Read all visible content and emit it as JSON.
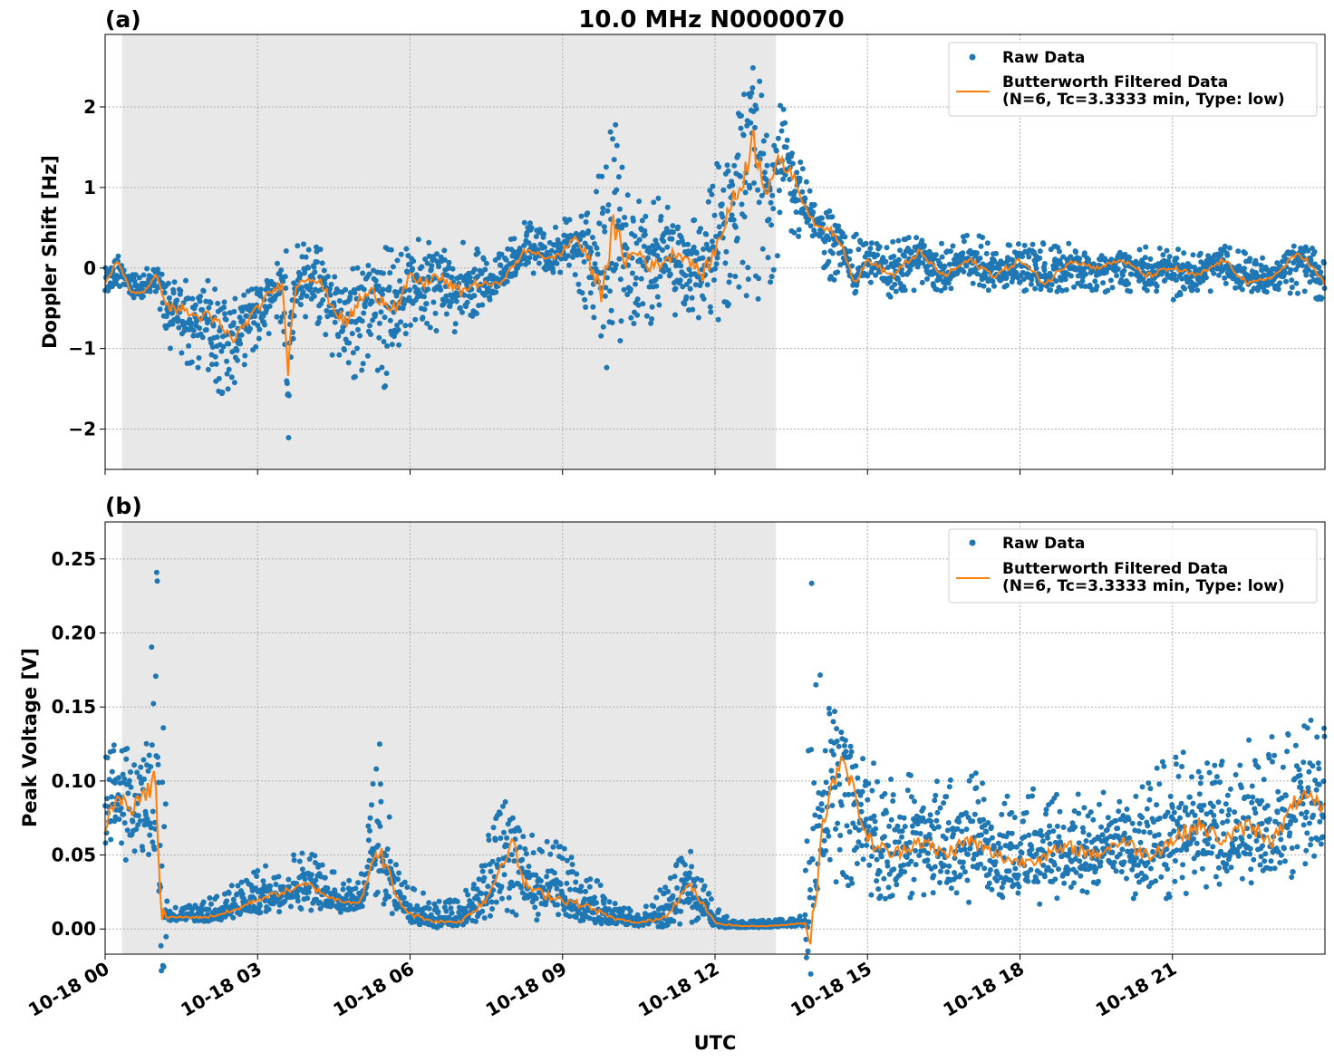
{
  "figure": {
    "title": "10.0 MHz N0000070",
    "xlabel": "UTC",
    "xticks": [
      "10-18 00",
      "10-18 03",
      "10-18 06",
      "10-18 09",
      "10-18 12",
      "10-18 15",
      "10-18 18",
      "10-18 21"
    ],
    "colors": {
      "raw": "#1f77b4",
      "filtered": "#ff7f0e",
      "shade": "#e8e8e8",
      "grid": "#b0b0b0"
    }
  },
  "chart_data": [
    {
      "type": "line",
      "panel_label": "(a)",
      "title": "10.0 MHz N0000070",
      "xlabel": "",
      "ylabel": "Doppler Shift [Hz]",
      "x_unit": "hours UTC on 10-18",
      "xlim": [
        0,
        24
      ],
      "ylim": [
        -2.5,
        2.9
      ],
      "yticks": [
        -2,
        -1,
        0,
        1,
        2
      ],
      "ytick_labels": [
        "−2",
        "−1",
        "0",
        "1",
        "2"
      ],
      "shaded_region": [
        0.33,
        13.2
      ],
      "grid": true,
      "legend_position": "top-right",
      "series": [
        {
          "name": "Raw Data",
          "style": "scatter",
          "x": [
            0.0,
            0.25,
            0.5,
            0.75,
            1.0,
            1.25,
            1.5,
            1.75,
            2.0,
            2.25,
            2.5,
            2.75,
            3.0,
            3.25,
            3.5,
            3.6,
            3.75,
            4.0,
            4.25,
            4.5,
            4.75,
            5.0,
            5.25,
            5.5,
            5.75,
            6.0,
            6.25,
            6.5,
            6.75,
            7.0,
            7.25,
            7.5,
            7.75,
            8.0,
            8.25,
            8.5,
            8.75,
            9.0,
            9.25,
            9.5,
            9.75,
            10.0,
            10.25,
            10.5,
            10.75,
            11.0,
            11.25,
            11.5,
            11.75,
            12.0,
            12.25,
            12.5,
            12.75,
            13.0,
            13.25,
            13.5,
            13.75,
            14.0,
            14.25,
            14.5,
            14.75,
            15.0,
            15.5,
            16.0,
            16.5,
            17.0,
            17.5,
            18.0,
            18.5,
            19.0,
            19.5,
            20.0,
            20.5,
            21.0,
            21.5,
            22.0,
            22.5,
            23.0,
            23.5,
            24.0
          ],
          "ylow": [
            -0.4,
            -0.2,
            -0.4,
            -0.3,
            -0.3,
            -1.1,
            -1.2,
            -1.3,
            -1.4,
            -1.6,
            -1.5,
            -1.2,
            -1.0,
            -0.8,
            -0.7,
            -2.2,
            -0.7,
            -0.6,
            -0.8,
            -1.2,
            -1.6,
            -1.4,
            -1.1,
            -1.5,
            -1.0,
            -0.8,
            -0.7,
            -0.8,
            -0.9,
            -0.7,
            -0.6,
            -0.5,
            -0.2,
            -0.1,
            -0.1,
            -0.1,
            -0.2,
            -0.1,
            -0.2,
            -0.6,
            -1.4,
            -1.1,
            -1.0,
            -0.6,
            -0.7,
            -0.5,
            -0.6,
            -0.6,
            -0.8,
            -0.7,
            -0.6,
            -0.2,
            -0.6,
            -0.4,
            0.2,
            0.35,
            0.4,
            0.3,
            -0.3,
            -0.2,
            -0.1,
            -0.2,
            -0.4,
            -0.3,
            -0.3,
            -0.2,
            -0.3,
            -0.3,
            -0.3,
            -0.3,
            -0.3,
            -0.3,
            -0.3,
            -0.4,
            -0.3,
            -0.3,
            -0.3,
            -0.3,
            -0.4,
            -0.4
          ],
          "yhigh": [
            0.0,
            0.1,
            -0.1,
            0.0,
            0.0,
            -0.1,
            -0.1,
            -0.2,
            -0.1,
            -0.2,
            -0.4,
            -0.3,
            -0.1,
            0.0,
            0.2,
            0.6,
            0.4,
            0.3,
            0.3,
            0.1,
            0.0,
            0.1,
            0.2,
            0.3,
            0.4,
            0.2,
            0.5,
            0.4,
            0.3,
            0.5,
            0.3,
            0.1,
            0.2,
            0.4,
            0.6,
            0.6,
            0.5,
            0.6,
            0.8,
            0.9,
            1.2,
            1.9,
            1.2,
            0.9,
            0.8,
            1.0,
            0.7,
            0.8,
            0.6,
            1.3,
            1.8,
            2.2,
            2.6,
            2.2,
            2.1,
            1.8,
            1.2,
            0.8,
            0.65,
            0.55,
            0.45,
            0.35,
            0.35,
            0.4,
            0.3,
            0.45,
            0.4,
            0.3,
            0.35,
            0.3,
            0.15,
            0.2,
            0.3,
            0.25,
            0.2,
            0.3,
            0.2,
            0.1,
            0.4,
            0.1
          ]
        },
        {
          "name": "Butterworth Filtered Data\n(N=6, Tc=3.3333 min, Type: low)",
          "style": "line",
          "x": [
            0.0,
            0.25,
            0.5,
            0.75,
            1.0,
            1.25,
            1.5,
            1.75,
            2.0,
            2.25,
            2.5,
            2.75,
            3.0,
            3.25,
            3.5,
            3.6,
            3.75,
            4.0,
            4.25,
            4.5,
            4.75,
            5.0,
            5.25,
            5.5,
            5.75,
            6.0,
            6.25,
            6.5,
            6.75,
            7.0,
            7.25,
            7.5,
            7.75,
            8.0,
            8.25,
            8.5,
            8.75,
            9.0,
            9.25,
            9.5,
            9.75,
            10.0,
            10.25,
            10.5,
            10.75,
            11.0,
            11.25,
            11.5,
            11.75,
            12.0,
            12.25,
            12.5,
            12.75,
            13.0,
            13.25,
            13.5,
            13.75,
            14.0,
            14.25,
            14.5,
            14.75,
            15.0,
            15.5,
            16.0,
            16.5,
            17.0,
            17.5,
            18.0,
            18.5,
            19.0,
            19.5,
            20.0,
            20.5,
            21.0,
            21.5,
            22.0,
            22.5,
            23.0,
            23.5,
            24.0
          ],
          "y": [
            -0.2,
            0.1,
            -0.3,
            -0.3,
            -0.1,
            -0.5,
            -0.5,
            -0.6,
            -0.6,
            -0.7,
            -0.9,
            -0.7,
            -0.5,
            -0.3,
            -0.2,
            -1.2,
            -0.2,
            -0.1,
            -0.2,
            -0.5,
            -0.7,
            -0.4,
            -0.3,
            -0.4,
            -0.5,
            -0.1,
            -0.2,
            -0.1,
            -0.2,
            -0.3,
            -0.2,
            -0.2,
            -0.2,
            0.0,
            0.2,
            0.2,
            0.1,
            0.2,
            0.4,
            0.1,
            -0.3,
            0.5,
            0.1,
            0.2,
            0.0,
            0.1,
            0.2,
            0.1,
            -0.1,
            0.2,
            0.7,
            1.0,
            1.6,
            1.0,
            1.3,
            1.2,
            0.8,
            0.5,
            0.5,
            0.3,
            -0.2,
            0.1,
            -0.1,
            0.2,
            -0.1,
            0.1,
            -0.1,
            0.1,
            -0.2,
            0.1,
            0.0,
            0.1,
            -0.1,
            0.0,
            -0.1,
            0.1,
            -0.2,
            -0.1,
            0.2,
            -0.2
          ]
        }
      ]
    },
    {
      "type": "line",
      "panel_label": "(b)",
      "xlabel": "UTC",
      "ylabel": "Peak Voltage [V]",
      "x_unit": "hours UTC on 10-18",
      "xlim": [
        0,
        24
      ],
      "ylim": [
        -0.017,
        0.275
      ],
      "yticks": [
        0.0,
        0.05,
        0.1,
        0.15,
        0.2,
        0.25
      ],
      "ytick_labels": [
        "0.00",
        "0.05",
        "0.10",
        "0.15",
        "0.20",
        "0.25"
      ],
      "xtick_labels": [
        "10-18 00",
        "10-18 03",
        "10-18 06",
        "10-18 09",
        "10-18 12",
        "10-18 15",
        "10-18 18",
        "10-18 21"
      ],
      "shaded_region": [
        0.33,
        13.2
      ],
      "grid": true,
      "legend_position": "top-right",
      "series": [
        {
          "name": "Raw Data",
          "style": "scatter",
          "x": [
            0.0,
            0.25,
            0.5,
            0.75,
            1.0,
            1.1,
            1.25,
            1.5,
            2.0,
            2.5,
            3.0,
            3.5,
            4.0,
            4.5,
            5.0,
            5.4,
            5.75,
            6.0,
            6.5,
            7.0,
            7.5,
            8.0,
            8.25,
            8.5,
            9.0,
            9.5,
            10.0,
            10.5,
            11.0,
            11.5,
            12.0,
            12.5,
            13.0,
            13.5,
            13.75,
            13.9,
            14.1,
            14.5,
            15.0,
            15.5,
            16.0,
            16.5,
            17.0,
            17.5,
            18.0,
            18.5,
            19.0,
            19.5,
            20.0,
            20.5,
            21.0,
            21.5,
            22.0,
            22.5,
            23.0,
            23.5,
            24.0
          ],
          "ylow": [
            0.04,
            0.05,
            0.04,
            0.05,
            0.03,
            0.005,
            0.005,
            0.006,
            0.006,
            0.008,
            0.01,
            0.012,
            0.012,
            0.01,
            0.01,
            0.012,
            0.008,
            0.003,
            0.002,
            0.003,
            0.005,
            0.01,
            0.008,
            0.006,
            0.005,
            0.004,
            0.003,
            0.002,
            0.002,
            0.003,
            0.001,
            0.001,
            0.001,
            0.002,
            0.002,
            -0.002,
            0.03,
            0.03,
            0.02,
            0.02,
            0.02,
            0.01,
            0.015,
            0.02,
            0.02,
            0.015,
            0.02,
            0.025,
            0.02,
            0.02,
            0.02,
            0.02,
            0.03,
            0.03,
            0.03,
            0.03,
            0.04
          ],
          "yhigh": [
            0.12,
            0.13,
            0.12,
            0.13,
            0.25,
            0.26,
            0.015,
            0.015,
            0.02,
            0.03,
            0.04,
            0.05,
            0.055,
            0.04,
            0.035,
            0.13,
            0.04,
            0.03,
            0.02,
            0.02,
            0.06,
            0.1,
            0.07,
            0.06,
            0.06,
            0.04,
            0.02,
            0.01,
            0.035,
            0.055,
            0.015,
            0.005,
            0.006,
            0.008,
            0.01,
            0.26,
            0.16,
            0.14,
            0.12,
            0.1,
            0.11,
            0.1,
            0.11,
            0.1,
            0.09,
            0.1,
            0.1,
            0.09,
            0.1,
            0.11,
            0.12,
            0.12,
            0.12,
            0.13,
            0.13,
            0.14,
            0.15
          ]
        },
        {
          "name": "Butterworth Filtered Data\n(N=6, Tc=3.3333 min, Type: low)",
          "style": "line",
          "x": [
            0.0,
            0.25,
            0.5,
            0.75,
            1.0,
            1.1,
            1.25,
            1.5,
            2.0,
            2.5,
            3.0,
            3.5,
            4.0,
            4.5,
            5.0,
            5.4,
            5.75,
            6.0,
            6.5,
            7.0,
            7.5,
            8.0,
            8.25,
            8.5,
            9.0,
            9.5,
            10.0,
            10.5,
            11.0,
            11.5,
            12.0,
            12.5,
            13.0,
            13.5,
            13.75,
            13.9,
            14.1,
            14.5,
            15.0,
            15.5,
            16.0,
            16.5,
            17.0,
            17.5,
            18.0,
            18.5,
            19.0,
            19.5,
            20.0,
            20.5,
            21.0,
            21.5,
            22.0,
            22.5,
            23.0,
            23.5,
            24.0
          ],
          "y": [
            0.07,
            0.09,
            0.08,
            0.09,
            0.1,
            0.005,
            0.008,
            0.008,
            0.008,
            0.012,
            0.02,
            0.025,
            0.03,
            0.02,
            0.018,
            0.055,
            0.02,
            0.01,
            0.005,
            0.005,
            0.02,
            0.06,
            0.03,
            0.025,
            0.02,
            0.015,
            0.007,
            0.004,
            0.008,
            0.03,
            0.004,
            0.002,
            0.002,
            0.003,
            0.004,
            -0.004,
            0.07,
            0.12,
            0.06,
            0.05,
            0.06,
            0.05,
            0.06,
            0.05,
            0.045,
            0.05,
            0.055,
            0.05,
            0.06,
            0.05,
            0.06,
            0.07,
            0.06,
            0.07,
            0.06,
            0.09,
            0.08
          ]
        }
      ]
    }
  ]
}
